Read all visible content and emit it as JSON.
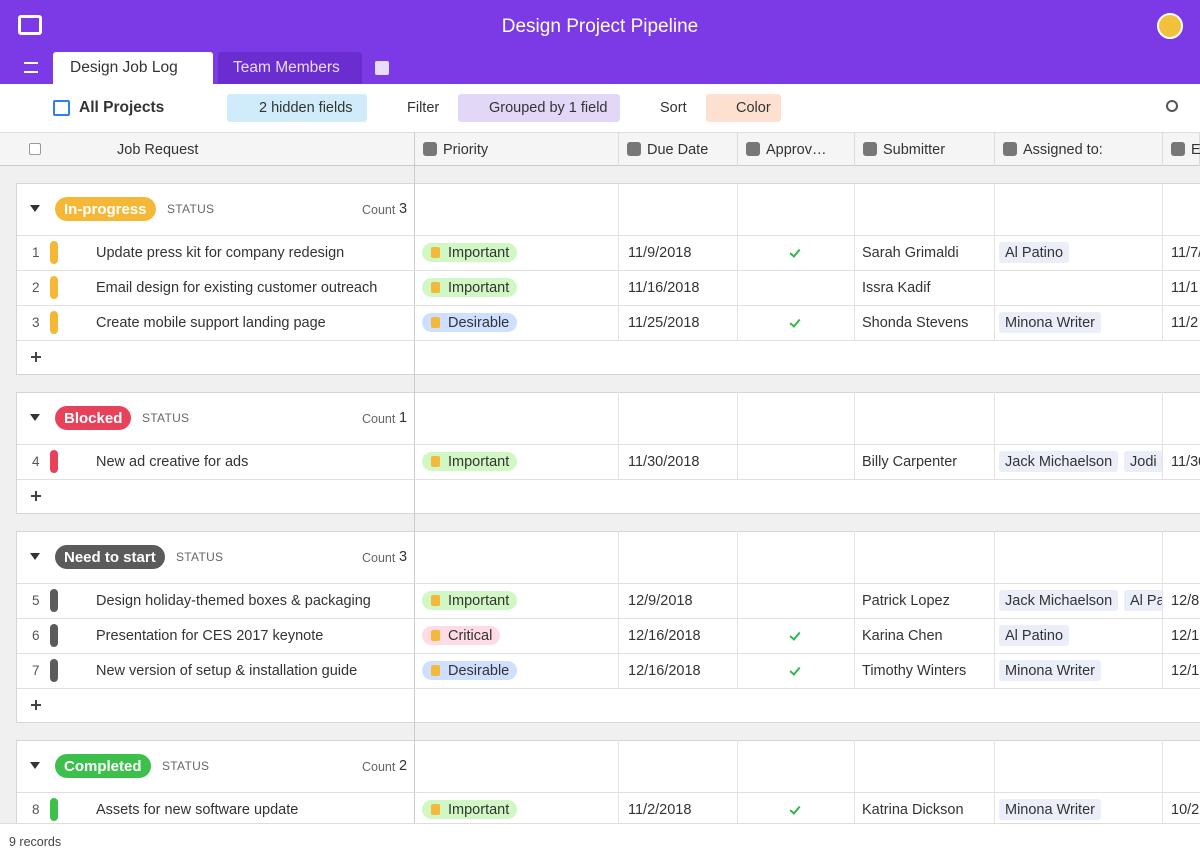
{
  "header": {
    "title": "Design Project Pipeline"
  },
  "tabs": [
    "Design Job Log",
    "Team Members"
  ],
  "toolbar": {
    "view": "All Projects",
    "hidden_fields": "2 hidden fields",
    "filter": "Filter",
    "group": "Grouped by 1 field",
    "sort": "Sort",
    "color": "Color"
  },
  "columns": [
    "Job Request",
    "Priority",
    "Due Date",
    "Approv…",
    "Submitter",
    "Assigned to:",
    "E"
  ],
  "groups": [
    {
      "label": "In-progress",
      "color": "#f5b836",
      "field": "STATUS",
      "count_label": "Count",
      "count": 3,
      "rows": [
        {
          "number": 1,
          "job": "Update press kit for company redesign",
          "priority": {
            "label": "Important",
            "color": "#d1f7c4"
          },
          "due": "11/9/2018",
          "approved": true,
          "submitter": "Sarah Grimaldi",
          "assigned": [
            "Al Patino"
          ],
          "next": "11/7/"
        },
        {
          "number": 2,
          "job": "Email design for existing customer outreach",
          "priority": {
            "label": "Important",
            "color": "#d1f7c4"
          },
          "due": "11/16/2018",
          "approved": false,
          "submitter": "Issra Kadif",
          "assigned": [],
          "next": "11/1"
        },
        {
          "number": 3,
          "job": "Create mobile support landing page",
          "priority": {
            "label": "Desirable",
            "color": "#cfdfff"
          },
          "due": "11/25/2018",
          "approved": true,
          "submitter": "Shonda Stevens",
          "assigned": [
            "Minona Writer"
          ],
          "next": "11/2"
        }
      ]
    },
    {
      "label": "Blocked",
      "color": "#e8415a",
      "field": "STATUS",
      "count_label": "Count",
      "count": 1,
      "rows": [
        {
          "number": 4,
          "job": "New ad creative for ads",
          "priority": {
            "label": "Important",
            "color": "#d1f7c4"
          },
          "due": "11/30/2018",
          "approved": false,
          "submitter": "Billy Carpenter",
          "assigned": [
            "Jack Michaelson",
            "Jodi I"
          ],
          "next": "11/30"
        }
      ]
    },
    {
      "label": "Need to start",
      "color": "#5b5b5b",
      "field": "STATUS",
      "count_label": "Count",
      "count": 3,
      "rows": [
        {
          "number": 5,
          "job": "Design holiday-themed boxes & packaging",
          "priority": {
            "label": "Important",
            "color": "#d1f7c4"
          },
          "due": "12/9/2018",
          "approved": false,
          "submitter": "Patrick Lopez",
          "assigned": [
            "Jack Michaelson",
            "Al Patino"
          ],
          "next": "12/8"
        },
        {
          "number": 6,
          "job": "Presentation for CES 2017 keynote",
          "priority": {
            "label": "Critical",
            "color": "#ffdce5"
          },
          "due": "12/16/2018",
          "approved": true,
          "submitter": "Karina Chen",
          "assigned": [
            "Al Patino"
          ],
          "next": "12/1"
        },
        {
          "number": 7,
          "job": "New version of setup & installation guide",
          "priority": {
            "label": "Desirable",
            "color": "#cfdfff"
          },
          "due": "12/16/2018",
          "approved": true,
          "submitter": "Timothy Winters",
          "assigned": [
            "Minona Writer"
          ],
          "next": "12/1"
        }
      ]
    },
    {
      "label": "Completed",
      "color": "#3dbf4c",
      "field": "STATUS",
      "count_label": "Count",
      "count": 2,
      "rows": [
        {
          "number": 8,
          "job": "Assets for new software update",
          "priority": {
            "label": "Important",
            "color": "#d1f7c4"
          },
          "due": "11/2/2018",
          "approved": true,
          "submitter": "Katrina Dickson",
          "assigned": [
            "Minona Writer"
          ],
          "next": "10/2"
        }
      ]
    }
  ],
  "footer": "9 records"
}
